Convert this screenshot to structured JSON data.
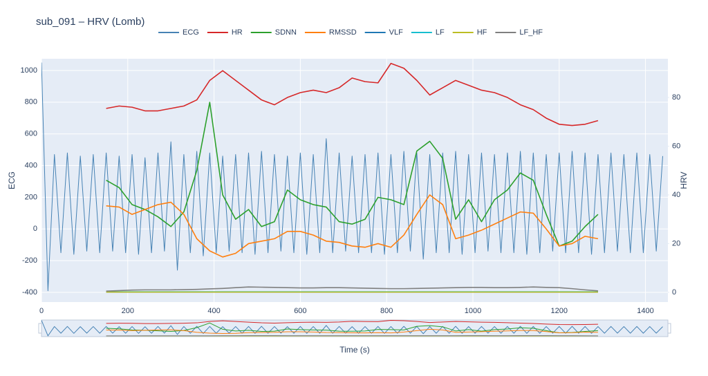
{
  "chart_data": {
    "type": "line",
    "title": "sub_091 – HRV (Lomb)",
    "xlabel": "Time (s)",
    "ylabel": "ECG",
    "y2label": "HRV",
    "xlim": [
      0,
      1452
    ],
    "xticks": [
      0,
      200,
      400,
      600,
      800,
      1000,
      1200,
      1400
    ],
    "ylim": [
      -461,
      1074
    ],
    "yticks": [
      -400,
      -200,
      0,
      200,
      400,
      600,
      800,
      1000
    ],
    "y2lim": [
      -4,
      95.9
    ],
    "y2ticks": [
      0,
      20,
      40,
      60,
      80
    ],
    "grid": true,
    "legend": "top",
    "rangeslider": true,
    "series": [
      {
        "name": "ECG",
        "color": "#4682b4",
        "axis": "y",
        "x": [
          0,
          15,
          30,
          45,
          60,
          75,
          90,
          105,
          120,
          135,
          150,
          165,
          180,
          195,
          210,
          225,
          240,
          255,
          270,
          285,
          300,
          315,
          330,
          345,
          360,
          375,
          390,
          405,
          420,
          435,
          450,
          465,
          480,
          495,
          510,
          525,
          540,
          555,
          570,
          585,
          600,
          615,
          630,
          645,
          660,
          675,
          690,
          705,
          720,
          735,
          750,
          765,
          780,
          795,
          810,
          825,
          840,
          855,
          870,
          885,
          900,
          915,
          930,
          945,
          960,
          975,
          990,
          1005,
          1020,
          1035,
          1050,
          1065,
          1080,
          1095,
          1110,
          1125,
          1140,
          1155,
          1170,
          1185,
          1200,
          1215,
          1230,
          1245,
          1260,
          1275,
          1290,
          1305,
          1320,
          1335,
          1350,
          1365,
          1380,
          1395,
          1410,
          1425,
          1440
        ],
        "values": [
          1050,
          -390,
          470,
          -150,
          480,
          -160,
          460,
          -140,
          470,
          -150,
          480,
          -140,
          460,
          -150,
          470,
          -160,
          450,
          -150,
          480,
          -140,
          550,
          -260,
          470,
          -150,
          490,
          -170,
          480,
          -150,
          460,
          -140,
          470,
          -150,
          480,
          -160,
          490,
          -150,
          470,
          -140,
          460,
          -150,
          480,
          -160,
          470,
          -150,
          570,
          -150,
          480,
          -140,
          460,
          -150,
          470,
          -150,
          480,
          -160,
          470,
          -150,
          490,
          -140,
          480,
          -190,
          470,
          -150,
          480,
          -150,
          490,
          -160,
          470,
          -150,
          480,
          -140,
          470,
          -150,
          480,
          -150,
          490,
          -160,
          480,
          -150,
          470,
          -140,
          480,
          -150,
          490,
          -150,
          480,
          -160,
          470,
          -150,
          480,
          -140,
          470,
          -150,
          480,
          -150,
          470,
          -140,
          460
        ]
      },
      {
        "name": "HR",
        "color": "#d62728",
        "axis": "y2",
        "x": [
          150,
          180,
          210,
          240,
          270,
          300,
          330,
          360,
          390,
          420,
          450,
          480,
          510,
          540,
          570,
          600,
          630,
          660,
          690,
          720,
          750,
          780,
          810,
          840,
          870,
          900,
          930,
          960,
          990,
          1020,
          1050,
          1080,
          1110,
          1140,
          1170,
          1200,
          1230,
          1260,
          1290
        ],
        "values": [
          75.5,
          76.5,
          76,
          74.5,
          74.5,
          75.5,
          76.5,
          79,
          87,
          91,
          87,
          83,
          79,
          77,
          80,
          82,
          83,
          82,
          84,
          88,
          86.5,
          86,
          94,
          92,
          87,
          81,
          84,
          87,
          85,
          83,
          82,
          80,
          77,
          75,
          71.5,
          69,
          68.5,
          69,
          70.5
        ]
      },
      {
        "name": "SDNN",
        "color": "#2ca02c",
        "axis": "y2",
        "x": [
          150,
          180,
          210,
          240,
          270,
          300,
          330,
          360,
          390,
          420,
          450,
          480,
          510,
          540,
          570,
          600,
          630,
          660,
          690,
          720,
          750,
          780,
          810,
          840,
          870,
          900,
          930,
          960,
          990,
          1020,
          1050,
          1080,
          1110,
          1140,
          1170,
          1200,
          1230,
          1260,
          1290
        ],
        "values": [
          46,
          43,
          36,
          34,
          31,
          27,
          33,
          50,
          78,
          40,
          30,
          34,
          27,
          29,
          42,
          38,
          36,
          35,
          29,
          28,
          30,
          39,
          38,
          36,
          58,
          62,
          55,
          30,
          38,
          29,
          38,
          42,
          49,
          46,
          32,
          19,
          21,
          27,
          32
        ]
      },
      {
        "name": "RMSSD",
        "color": "#ff7f0e",
        "axis": "y2",
        "x": [
          150,
          180,
          210,
          240,
          270,
          300,
          330,
          360,
          390,
          420,
          450,
          480,
          510,
          540,
          570,
          600,
          630,
          660,
          690,
          720,
          750,
          780,
          810,
          840,
          870,
          900,
          930,
          960,
          990,
          1020,
          1050,
          1080,
          1110,
          1140,
          1170,
          1200,
          1230,
          1260,
          1290
        ],
        "values": [
          35.5,
          35,
          32,
          34,
          36,
          37,
          32,
          22,
          17,
          14.5,
          16,
          20,
          21,
          22,
          25,
          25,
          23.5,
          21,
          20.5,
          19,
          18.5,
          20,
          18.5,
          23.5,
          32,
          40,
          36,
          22,
          23.5,
          25.5,
          28,
          30.5,
          33,
          32.5,
          26,
          19,
          20,
          23,
          22
        ]
      },
      {
        "name": "VLF",
        "color": "#1f77b4",
        "axis": "y2",
        "x": [
          150,
          180,
          210,
          240,
          270,
          300,
          330,
          360,
          390,
          420,
          450,
          480,
          510,
          540,
          570,
          600,
          630,
          660,
          690,
          720,
          750,
          780,
          810,
          840,
          870,
          900,
          930,
          960,
          990,
          1020,
          1050,
          1080,
          1110,
          1140,
          1170,
          1200,
          1230,
          1260,
          1290
        ],
        "values": [
          0.1,
          0.1,
          0.1,
          0.1,
          0.1,
          0.1,
          0.1,
          0.1,
          0.1,
          0.1,
          0.1,
          0.1,
          0.1,
          0.1,
          0.1,
          0.1,
          0.1,
          0.1,
          0.1,
          0.1,
          0.1,
          0.1,
          0.1,
          0.1,
          0.1,
          0.1,
          0.1,
          0.1,
          0.1,
          0.1,
          0.1,
          0.1,
          0.1,
          0.1,
          0.1,
          0.1,
          0.1,
          0.1,
          0.1
        ]
      },
      {
        "name": "LF",
        "color": "#17becf",
        "axis": "y2",
        "x": [
          150,
          180,
          210,
          240,
          270,
          300,
          330,
          360,
          390,
          420,
          450,
          480,
          510,
          540,
          570,
          600,
          630,
          660,
          690,
          720,
          750,
          780,
          810,
          840,
          870,
          900,
          930,
          960,
          990,
          1020,
          1050,
          1080,
          1110,
          1140,
          1170,
          1200,
          1230,
          1260,
          1290
        ],
        "values": [
          0.2,
          0.2,
          0.2,
          0.2,
          0.2,
          0.2,
          0.2,
          0.2,
          0.2,
          0.2,
          0.2,
          0.2,
          0.2,
          0.2,
          0.2,
          0.2,
          0.2,
          0.2,
          0.2,
          0.2,
          0.2,
          0.2,
          0.2,
          0.2,
          0.2,
          0.2,
          0.2,
          0.2,
          0.2,
          0.2,
          0.2,
          0.2,
          0.2,
          0.2,
          0.2,
          0.2,
          0.2,
          0.2,
          0.2
        ]
      },
      {
        "name": "HF",
        "color": "#bcbd22",
        "axis": "y2",
        "x": [
          150,
          180,
          210,
          240,
          270,
          300,
          330,
          360,
          390,
          420,
          450,
          480,
          510,
          540,
          570,
          600,
          630,
          660,
          690,
          720,
          750,
          780,
          810,
          840,
          870,
          900,
          930,
          960,
          990,
          1020,
          1050,
          1080,
          1110,
          1140,
          1170,
          1200,
          1230,
          1260,
          1290
        ],
        "values": [
          0.1,
          0.1,
          0.1,
          0.1,
          0.1,
          0.1,
          0.1,
          0.1,
          0.1,
          0.1,
          0.1,
          0.1,
          0.1,
          0.1,
          0.1,
          0.1,
          0.1,
          0.1,
          0.1,
          0.1,
          0.1,
          0.1,
          0.1,
          0.1,
          0.1,
          0.1,
          0.1,
          0.1,
          0.1,
          0.1,
          0.1,
          0.1,
          0.1,
          0.1,
          0.1,
          0.1,
          0.1,
          0.1,
          0.1
        ]
      },
      {
        "name": "LF_HF",
        "color": "#7f7f7f",
        "axis": "y2",
        "x": [
          150,
          180,
          210,
          240,
          270,
          300,
          330,
          360,
          390,
          420,
          450,
          480,
          510,
          540,
          570,
          600,
          630,
          660,
          690,
          720,
          750,
          780,
          810,
          840,
          870,
          900,
          930,
          960,
          990,
          1020,
          1050,
          1080,
          1110,
          1140,
          1170,
          1200,
          1230,
          1260,
          1290
        ],
        "values": [
          0.5,
          0.7,
          0.9,
          1.0,
          1.0,
          1.0,
          1.1,
          1.2,
          1.4,
          1.6,
          1.9,
          2.2,
          2.1,
          2.0,
          1.9,
          1.8,
          1.8,
          1.9,
          1.9,
          1.8,
          1.7,
          1.6,
          1.5,
          1.5,
          1.6,
          1.7,
          1.8,
          1.9,
          2.0,
          2.0,
          1.9,
          1.9,
          2.0,
          2.2,
          2.0,
          1.9,
          1.5,
          1.0,
          0.6
        ]
      }
    ]
  }
}
